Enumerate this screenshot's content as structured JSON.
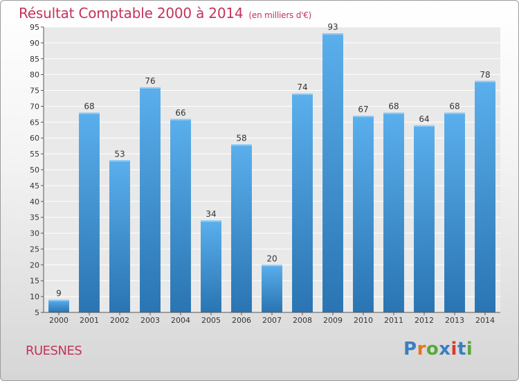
{
  "header": {
    "title": "Résultat Comptable 2000 à 2014",
    "unit": "(en milliers d'€)"
  },
  "footer": {
    "commune": "RUESNES",
    "logo": {
      "text": "Proxiti",
      "letters": [
        "P",
        "r",
        "o",
        "x",
        "i",
        "t",
        "i"
      ],
      "colors": [
        "#3a7fc0",
        "#e8741a",
        "#5aa83c",
        "#3a7fc0",
        "#d63a2e",
        "#3a7fc0",
        "#5aa83c"
      ]
    }
  },
  "chart_data": {
    "type": "bar",
    "title": "Résultat Comptable 2000 à 2014",
    "subtitle": "(en milliers d'€)",
    "categories": [
      "2000",
      "2001",
      "2002",
      "2003",
      "2004",
      "2005",
      "2006",
      "2007",
      "2008",
      "2009",
      "2010",
      "2011",
      "2012",
      "2013",
      "2014"
    ],
    "values": [
      9,
      68,
      53,
      76,
      66,
      34,
      58,
      20,
      74,
      93,
      67,
      68,
      64,
      68,
      78
    ],
    "ylim": [
      5,
      95
    ],
    "yticks": [
      5,
      10,
      15,
      20,
      25,
      30,
      35,
      40,
      45,
      50,
      55,
      60,
      65,
      70,
      75,
      80,
      85,
      90,
      95
    ],
    "grid": true,
    "bar_color_top": "#5aafec",
    "bar_color_bottom": "#2a74b2"
  }
}
